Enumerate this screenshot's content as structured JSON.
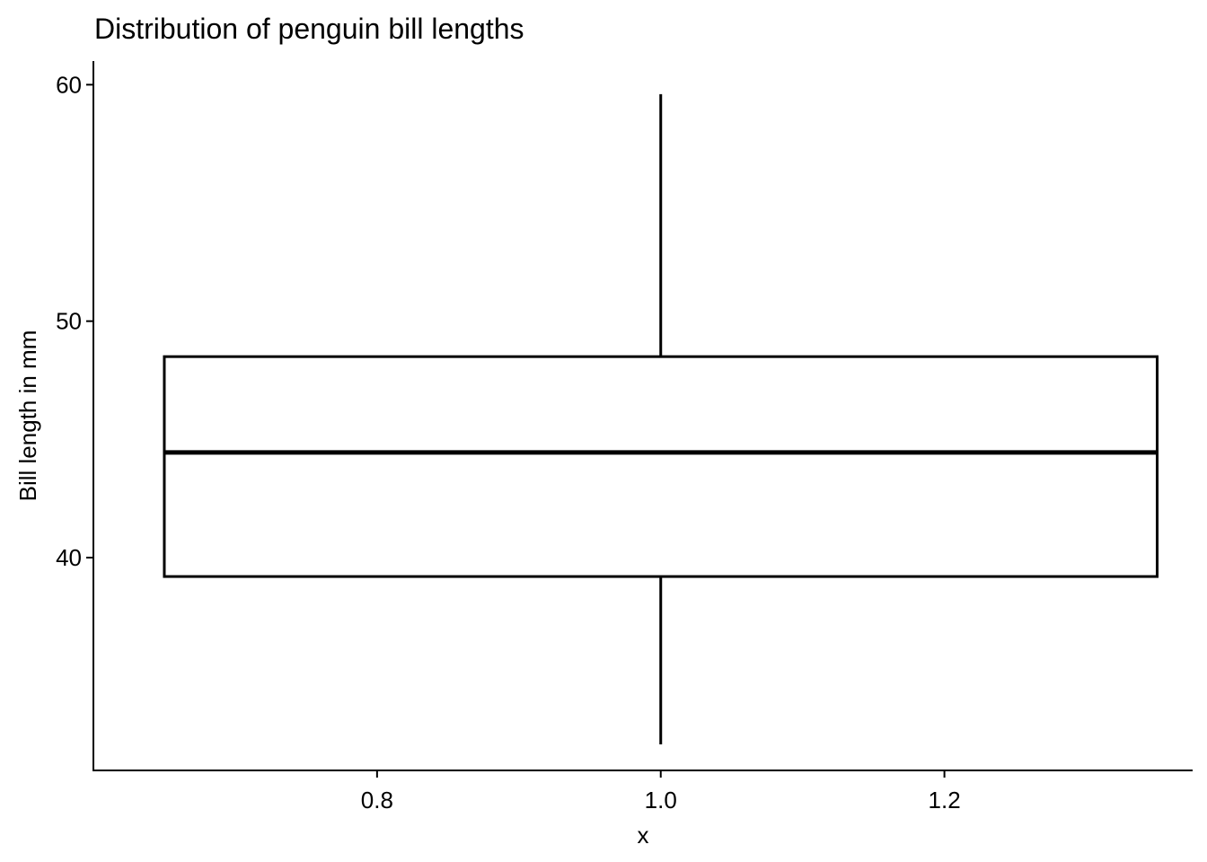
{
  "chart_data": {
    "type": "boxplot",
    "title": "Distribution of penguin bill lengths",
    "xlabel": "x",
    "ylabel": "Bill length in mm",
    "xlim": [
      0.6,
      1.375
    ],
    "ylim": [
      31,
      61
    ],
    "x_ticks": [
      0.8,
      1.0,
      1.2
    ],
    "x_tick_labels": [
      "0.8",
      "1.0",
      "1.2"
    ],
    "y_ticks": [
      40,
      50,
      60
    ],
    "y_tick_labels": [
      "40",
      "50",
      "60"
    ],
    "grid": false,
    "box": {
      "x": 1.0,
      "x_left": 0.65,
      "x_right": 1.35,
      "whisker_low": 32.1,
      "q1": 39.2,
      "median": 44.45,
      "q3": 48.5,
      "whisker_high": 59.6
    },
    "colors": {
      "line": "#000000",
      "fill": "#ffffff",
      "background": "#ffffff"
    }
  }
}
